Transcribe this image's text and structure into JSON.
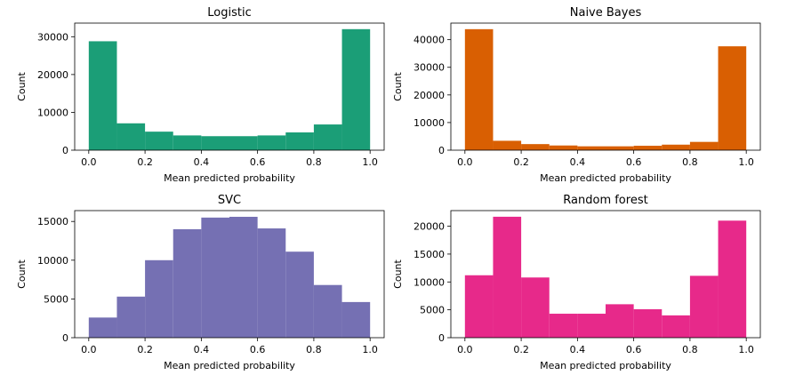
{
  "chart_data": [
    {
      "type": "bar",
      "subtype": "histogram",
      "title": "Logistic",
      "xlabel": "Mean predicted probability",
      "ylabel": "Count",
      "color": "#1b9e77",
      "bin_edges": [
        0.0,
        0.1,
        0.2,
        0.3,
        0.4,
        0.5,
        0.6,
        0.7,
        0.8,
        0.9,
        1.0
      ],
      "values": [
        28800,
        7100,
        4900,
        3900,
        3700,
        3700,
        3900,
        4700,
        6800,
        32000
      ],
      "xlim": [
        -0.05,
        1.05
      ],
      "ylim": [
        0,
        33600
      ],
      "xticks": [
        0.0,
        0.2,
        0.4,
        0.6,
        0.8,
        1.0
      ],
      "xtick_labels": [
        "0.0",
        "0.2",
        "0.4",
        "0.6",
        "0.8",
        "1.0"
      ],
      "yticks": [
        0,
        10000,
        20000,
        30000
      ],
      "ytick_labels": [
        "0",
        "10000",
        "20000",
        "30000"
      ],
      "grid": false
    },
    {
      "type": "bar",
      "subtype": "histogram",
      "title": "Naive Bayes",
      "xlabel": "Mean predicted probability",
      "ylabel": "Count",
      "color": "#d95f02",
      "bin_edges": [
        0.0,
        0.1,
        0.2,
        0.3,
        0.4,
        0.5,
        0.6,
        0.7,
        0.8,
        0.9,
        1.0
      ],
      "values": [
        43800,
        3400,
        2200,
        1700,
        1400,
        1400,
        1600,
        2000,
        3000,
        37600
      ],
      "xlim": [
        -0.05,
        1.05
      ],
      "ylim": [
        0,
        46000
      ],
      "xticks": [
        0.0,
        0.2,
        0.4,
        0.6,
        0.8,
        1.0
      ],
      "xtick_labels": [
        "0.0",
        "0.2",
        "0.4",
        "0.6",
        "0.8",
        "1.0"
      ],
      "yticks": [
        0,
        10000,
        20000,
        30000,
        40000
      ],
      "ytick_labels": [
        "0",
        "10000",
        "20000",
        "30000",
        "40000"
      ],
      "grid": false
    },
    {
      "type": "bar",
      "subtype": "histogram",
      "title": "SVC",
      "xlabel": "Mean predicted probability",
      "ylabel": "Count",
      "color": "#7570b3",
      "bin_edges": [
        0.0,
        0.1,
        0.2,
        0.3,
        0.4,
        0.5,
        0.6,
        0.7,
        0.8,
        0.9,
        1.0
      ],
      "values": [
        2600,
        5300,
        10000,
        14000,
        15500,
        15600,
        14100,
        11100,
        6800,
        4600
      ],
      "xlim": [
        -0.05,
        1.05
      ],
      "ylim": [
        0,
        16400
      ],
      "xticks": [
        0.0,
        0.2,
        0.4,
        0.6,
        0.8,
        1.0
      ],
      "xtick_labels": [
        "0.0",
        "0.2",
        "0.4",
        "0.6",
        "0.8",
        "1.0"
      ],
      "yticks": [
        0,
        5000,
        10000,
        15000
      ],
      "ytick_labels": [
        "0",
        "5000",
        "10000",
        "15000"
      ],
      "grid": false
    },
    {
      "type": "bar",
      "subtype": "histogram",
      "title": "Random forest",
      "xlabel": "Mean predicted probability",
      "ylabel": "Count",
      "color": "#e7298a",
      "bin_edges": [
        0.0,
        0.1,
        0.2,
        0.3,
        0.4,
        0.5,
        0.6,
        0.7,
        0.8,
        0.9,
        1.0
      ],
      "values": [
        11200,
        21700,
        10800,
        4300,
        4300,
        6000,
        5100,
        4000,
        11100,
        21000
      ],
      "xlim": [
        -0.05,
        1.05
      ],
      "ylim": [
        0,
        22800
      ],
      "xticks": [
        0.0,
        0.2,
        0.4,
        0.6,
        0.8,
        1.0
      ],
      "xtick_labels": [
        "0.0",
        "0.2",
        "0.4",
        "0.6",
        "0.8",
        "1.0"
      ],
      "yticks": [
        0,
        5000,
        10000,
        15000,
        20000
      ],
      "ytick_labels": [
        "0",
        "5000",
        "10000",
        "15000",
        "20000"
      ],
      "grid": false
    }
  ]
}
